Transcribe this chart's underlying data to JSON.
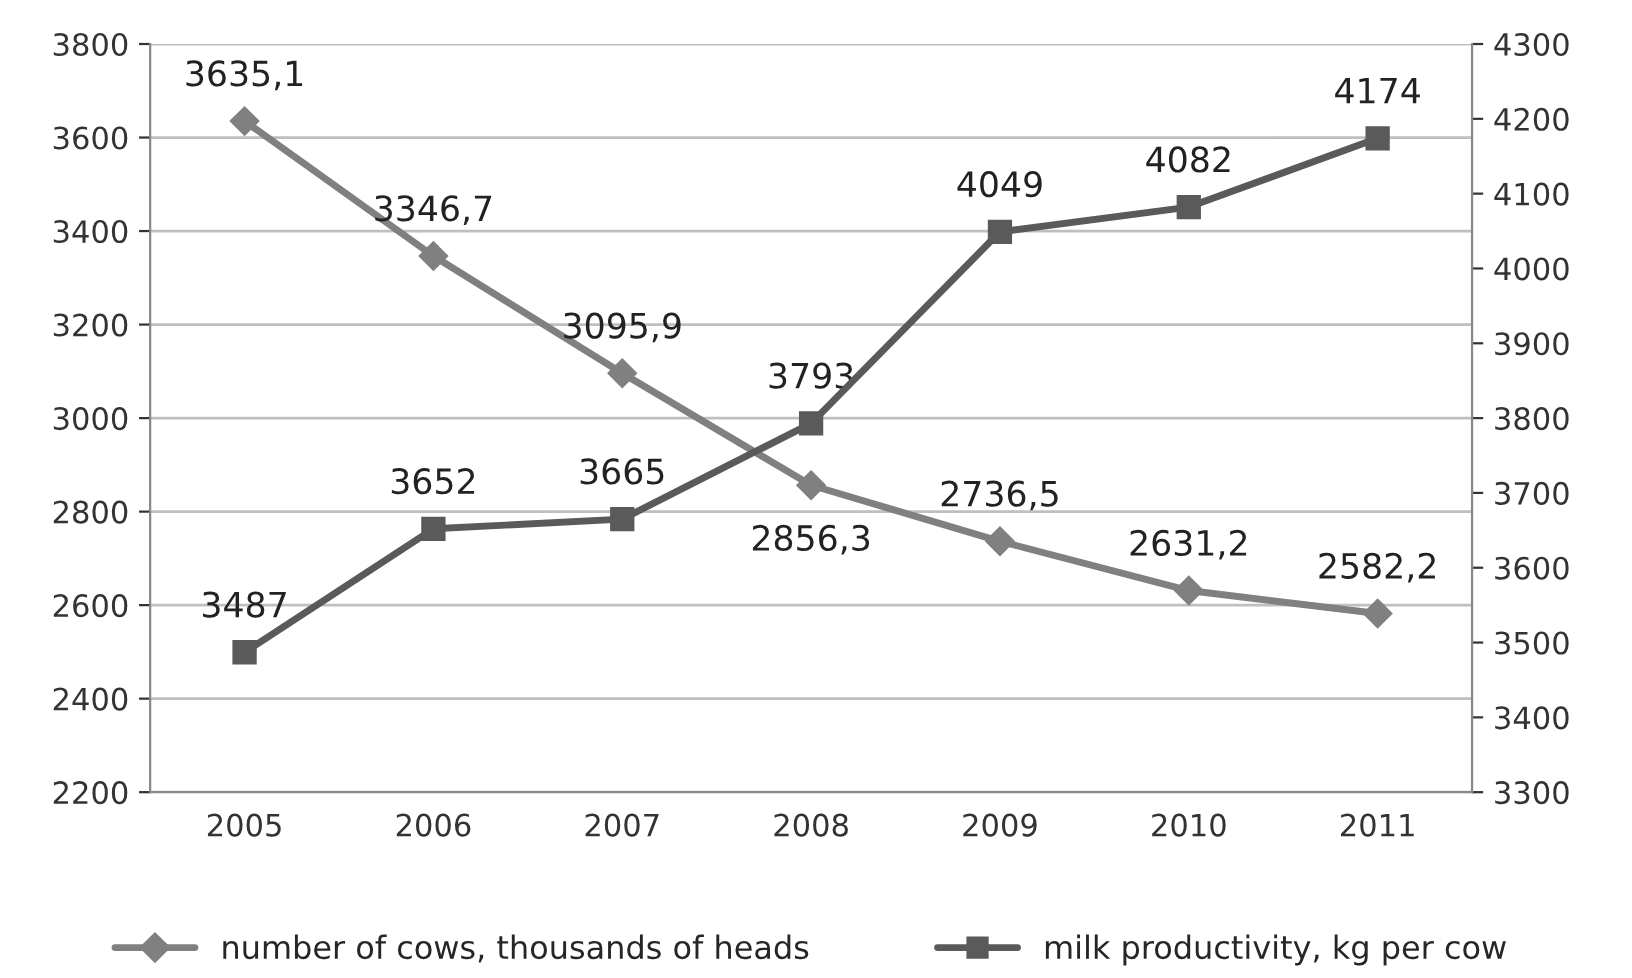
{
  "chart_data": {
    "type": "line",
    "categories": [
      "2005",
      "2006",
      "2007",
      "2008",
      "2009",
      "2010",
      "2011"
    ],
    "series": [
      {
        "name": "number of cows, thousands of heads",
        "color": "#808080",
        "marker": "diamond",
        "values": [
          3635.1,
          3346.7,
          3095.9,
          2856.3,
          2736.5,
          2631.2,
          2582.2
        ],
        "value_labels": [
          "3635,1",
          "3346,7",
          "3095,9",
          "2856,3",
          "2736,5",
          "2631,2",
          "2582,2"
        ]
      },
      {
        "name": "milk productivity, kg per cow",
        "color": "#5a5a5a",
        "marker": "square",
        "axis": "y2",
        "values": [
          3487,
          3652,
          3665,
          3793,
          4049,
          4082,
          4174
        ],
        "value_labels": [
          "3487",
          "3652",
          "3665",
          "3793",
          "4049",
          "4082",
          "4174"
        ]
      }
    ],
    "ylim": [
      2200,
      3800
    ],
    "yticks": [
      2200,
      2400,
      2600,
      2800,
      3000,
      3200,
      3400,
      3600,
      3800
    ],
    "y2lim": [
      3300,
      4300
    ],
    "y2ticks": [
      3300,
      3400,
      3500,
      3600,
      3700,
      3800,
      3900,
      4000,
      4100,
      4200,
      4300
    ],
    "grid": "y",
    "legend": "bottom",
    "line_style": "solid"
  }
}
